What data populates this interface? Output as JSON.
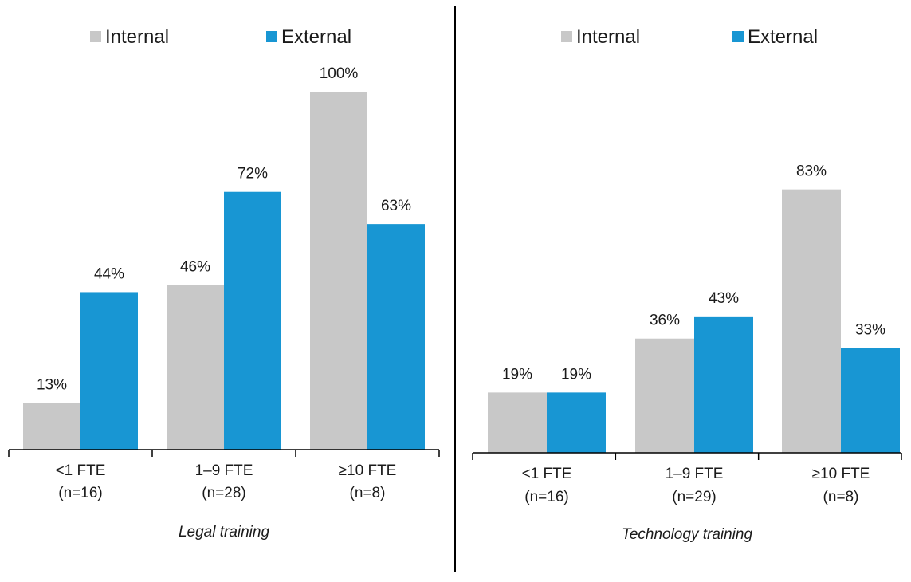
{
  "colors": {
    "internal": "#c8c8c8",
    "external": "#1896d3",
    "axis": "#000000"
  },
  "chart_data": [
    {
      "type": "bar",
      "title": "Legal training",
      "categories": [
        {
          "line1": "<1 FTE",
          "line2": "(n=16)"
        },
        {
          "line1": "1–9 FTE",
          "line2": "(n=28)"
        },
        {
          "line1": "≥10 FTE",
          "line2": "(n=8)"
        }
      ],
      "series": [
        {
          "name": "Internal",
          "values": [
            13,
            46,
            100
          ],
          "labels": [
            "13%",
            "46%",
            "100%"
          ]
        },
        {
          "name": "External",
          "values": [
            44,
            72,
            63
          ],
          "labels": [
            "44%",
            "72%",
            "63%"
          ]
        }
      ],
      "ylim": [
        0,
        100
      ],
      "grid": false,
      "legend": "top"
    },
    {
      "type": "bar",
      "title": "Technology training",
      "categories": [
        {
          "line1": "<1 FTE",
          "line2": "(n=16)"
        },
        {
          "line1": "1–9 FTE",
          "line2": "(n=29)"
        },
        {
          "line1": "≥10 FTE",
          "line2": "(n=8)"
        }
      ],
      "series": [
        {
          "name": "Internal",
          "values": [
            19,
            36,
            83
          ],
          "labels": [
            "19%",
            "36%",
            "83%"
          ]
        },
        {
          "name": "External",
          "values": [
            19,
            43,
            33
          ],
          "labels": [
            "19%",
            "43%",
            "33%"
          ]
        }
      ],
      "ylim": [
        0,
        100
      ],
      "grid": false,
      "legend": "top"
    }
  ]
}
